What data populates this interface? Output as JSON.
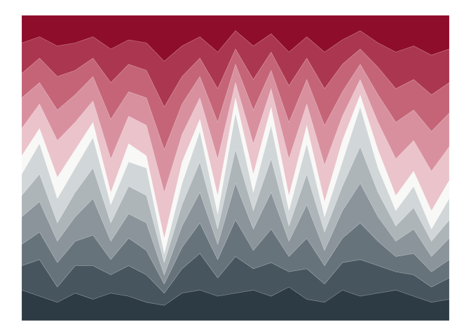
{
  "chart_data": {
    "type": "stacked_area",
    "ylim": [
      0,
      100
    ],
    "series": [
      {
        "color": "#2d3b45",
        "values": [
          10,
          8,
          6,
          9,
          7,
          9,
          8,
          6,
          5,
          9,
          10,
          8,
          9,
          10,
          8,
          11,
          7,
          6,
          10,
          8,
          9,
          10,
          8,
          6,
          7
        ]
      },
      {
        "color": "#47555f",
        "values": [
          8,
          12,
          5,
          9,
          11,
          6,
          10,
          9,
          4,
          8,
          12,
          6,
          12,
          7,
          11,
          5,
          10,
          6,
          9,
          12,
          9,
          6,
          7,
          5,
          7
        ]
      },
      {
        "color": "#67737b",
        "values": [
          7,
          9,
          8,
          8,
          10,
          5,
          9,
          8,
          3,
          7,
          10,
          6,
          12,
          6,
          11,
          5,
          10,
          6,
          8,
          12,
          8,
          5,
          7,
          5,
          6
        ]
      },
      {
        "color": "#8a949a",
        "values": [
          9,
          10,
          7,
          8,
          12,
          6,
          8,
          9,
          3,
          7,
          10,
          5,
          12,
          7,
          12,
          5,
          11,
          5,
          9,
          13,
          8,
          5,
          8,
          5,
          7
        ]
      },
      {
        "color": "#adb5b9",
        "values": [
          7,
          9,
          6,
          8,
          10,
          6,
          9,
          9,
          4,
          7,
          10,
          5,
          11,
          6,
          11,
          5,
          10,
          6,
          8,
          12,
          8,
          5,
          7,
          5,
          6
        ]
      },
      {
        "color": "#d1d6d8",
        "values": [
          7,
          10,
          8,
          8,
          10,
          6,
          8,
          9,
          3,
          7,
          10,
          5,
          12,
          6,
          11,
          5,
          10,
          5,
          8,
          13,
          8,
          5,
          7,
          4,
          7
        ]
      },
      {
        "color": "#f8f8f7",
        "values": [
          6,
          5,
          7,
          6,
          5,
          4,
          6,
          4,
          5,
          7,
          4,
          6,
          5,
          6,
          6,
          5,
          6,
          5,
          7,
          4,
          6,
          5,
          5,
          6,
          6
        ]
      },
      {
        "color": "#ebc3cb",
        "values": [
          9,
          8,
          12,
          9,
          7,
          11,
          9,
          10,
          15,
          9,
          7,
          12,
          5,
          10,
          6,
          12,
          7,
          12,
          8,
          5,
          9,
          12,
          10,
          13,
          11
        ]
      },
      {
        "color": "#d8909f",
        "values": [
          10,
          7,
          10,
          9,
          8,
          13,
          8,
          9,
          14,
          10,
          7,
          12,
          6,
          11,
          6,
          12,
          8,
          13,
          8,
          5,
          9,
          12,
          10,
          13,
          11
        ]
      },
      {
        "color": "#c56477",
        "values": [
          8,
          8,
          11,
          8,
          6,
          12,
          9,
          9,
          14,
          9,
          6,
          11,
          5,
          10,
          6,
          12,
          7,
          12,
          9,
          5,
          9,
          11,
          10,
          12,
          10
        ]
      },
      {
        "color": "#ab3650",
        "values": [
          10,
          7,
          10,
          9,
          7,
          11,
          8,
          9,
          15,
          10,
          7,
          12,
          6,
          11,
          6,
          11,
          7,
          12,
          8,
          6,
          8,
          12,
          11,
          13,
          11
        ]
      },
      {
        "color": "#8e0d2a",
        "values": [
          9,
          7,
          10,
          9,
          7,
          11,
          8,
          9,
          15,
          10,
          7,
          12,
          5,
          10,
          6,
          12,
          7,
          12,
          8,
          5,
          9,
          12,
          10,
          13,
          11
        ]
      }
    ]
  }
}
